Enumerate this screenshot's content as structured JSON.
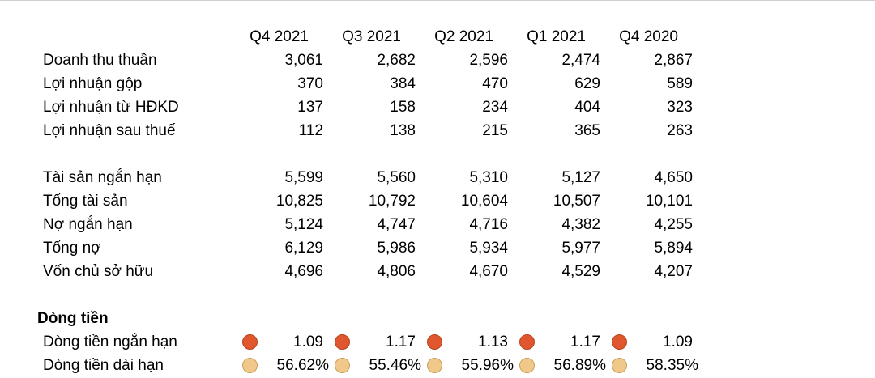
{
  "columns": [
    "Q4 2021",
    "Q3 2021",
    "Q2 2021",
    "Q1 2021",
    "Q4 2020"
  ],
  "income": [
    {
      "label": "Doanh thu thuần",
      "values": [
        "3,061",
        "2,682",
        "2,596",
        "2,474",
        "2,867"
      ]
    },
    {
      "label": "Lợi nhuận gộp",
      "values": [
        "370",
        "384",
        "470",
        "629",
        "589"
      ]
    },
    {
      "label": "Lợi nhuận từ HĐKD",
      "values": [
        "137",
        "158",
        "234",
        "404",
        "323"
      ]
    },
    {
      "label": "Lợi nhuận sau thuế",
      "values": [
        "112",
        "138",
        "215",
        "365",
        "263"
      ]
    }
  ],
  "balance": [
    {
      "label": "Tài sản ngắn hạn",
      "values": [
        "5,599",
        "5,560",
        "5,310",
        "5,127",
        "4,650"
      ]
    },
    {
      "label": "Tổng tài sản",
      "values": [
        "10,825",
        "10,792",
        "10,604",
        "10,507",
        "10,101"
      ]
    },
    {
      "label": "Nợ ngắn hạn",
      "values": [
        "5,124",
        "4,747",
        "4,716",
        "4,382",
        "4,255"
      ]
    },
    {
      "label": "Tổng nợ",
      "values": [
        "6,129",
        "5,986",
        "5,934",
        "5,977",
        "5,894"
      ]
    },
    {
      "label": "Vốn chủ sở hữu",
      "values": [
        "4,696",
        "4,806",
        "4,670",
        "4,529",
        "4,207"
      ]
    }
  ],
  "cashflow": {
    "title": "Dòng tiền",
    "rows": [
      {
        "label": "Dòng tiền ngắn hạn",
        "values": [
          "1.09",
          "1.17",
          "1.13",
          "1.17",
          "1.09"
        ],
        "indicator_color": "#e0562f",
        "indicator_border": "#b8431f"
      },
      {
        "label": "Dòng tiền dài hạn",
        "values": [
          "56.62%",
          "55.46%",
          "55.96%",
          "56.89%",
          "58.35%"
        ],
        "indicator_color": "#f0c98a",
        "indicator_border": "#c9a05c"
      }
    ]
  }
}
